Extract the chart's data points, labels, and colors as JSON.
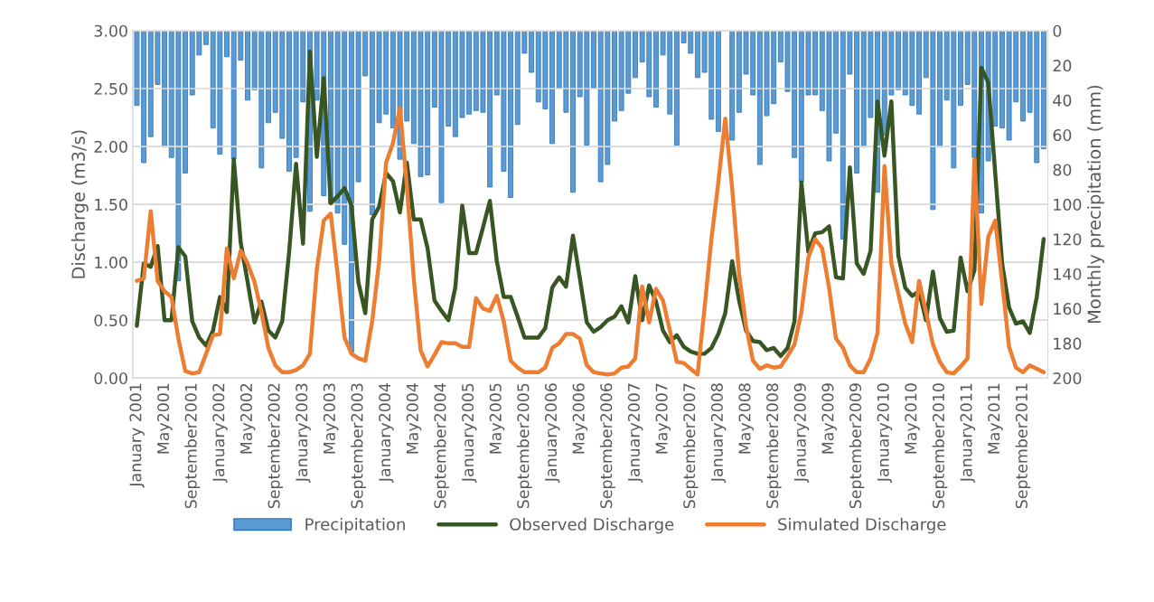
{
  "chart_data": {
    "type": "bar",
    "ylabel": "Discharge (m3/s)",
    "y2label": "Monthly precipitation (mm)",
    "categories": [
      "January 2001",
      null,
      null,
      null,
      "May2001",
      null,
      null,
      null,
      "September2001",
      null,
      null,
      null,
      "January2002",
      null,
      null,
      null,
      "May2002",
      null,
      null,
      null,
      "September2002",
      null,
      null,
      null,
      "January2003",
      null,
      null,
      null,
      "May2003",
      null,
      null,
      null,
      "September2003",
      null,
      null,
      null,
      "January2004",
      null,
      null,
      null,
      "May2004",
      null,
      null,
      null,
      "September2004",
      null,
      null,
      null,
      "January2005",
      null,
      null,
      null,
      "May2005",
      null,
      null,
      null,
      "September2005",
      null,
      null,
      null,
      "January2006",
      null,
      null,
      null,
      "May2006",
      null,
      null,
      null,
      "September2006",
      null,
      null,
      null,
      "January2007",
      null,
      null,
      null,
      "May2007",
      null,
      null,
      null,
      "September2007",
      null,
      null,
      null,
      "January2008",
      null,
      null,
      null,
      "May2008",
      null,
      null,
      null,
      "September2008",
      null,
      null,
      null,
      "January2009",
      null,
      null,
      null,
      "May2009",
      null,
      null,
      null,
      "September2009",
      null,
      null,
      null,
      "January2010",
      null,
      null,
      null,
      "May2010",
      null,
      null,
      null,
      "September2010",
      null,
      null,
      null,
      "January2011",
      null,
      null,
      null,
      "May2011",
      null,
      null,
      null,
      "September2011",
      null,
      null,
      null
    ],
    "series": [
      {
        "name": "Precipitation",
        "axis": "y2",
        "color": "#5b9bd5",
        "values": [
          43,
          76,
          61,
          31,
          67,
          73,
          144,
          82,
          37,
          14,
          8,
          56,
          71,
          15,
          74,
          17,
          40,
          34,
          79,
          53,
          47,
          62,
          81,
          73,
          41,
          104,
          40,
          95,
          100,
          105,
          123,
          185,
          87,
          26,
          106,
          53,
          48,
          56,
          74,
          52,
          65,
          84,
          83,
          44,
          99,
          55,
          61,
          50,
          48,
          46,
          47,
          90,
          37,
          81,
          96,
          54,
          13,
          24,
          41,
          45,
          65,
          33,
          47,
          93,
          38,
          66,
          33,
          87,
          77,
          52,
          46,
          36,
          27,
          18,
          38,
          44,
          14,
          48,
          66,
          7,
          13,
          27,
          24,
          51,
          58,
          null,
          63,
          47,
          25,
          37,
          77,
          49,
          42,
          18,
          35,
          73,
          87,
          37,
          37,
          46,
          75,
          59,
          120,
          25,
          82,
          67,
          50,
          93,
          60,
          37,
          34,
          37,
          43,
          48,
          27,
          103,
          67,
          40,
          79,
          43,
          31,
          73,
          105,
          75,
          55,
          56,
          63,
          41,
          52,
          47,
          76,
          68
        ]
      },
      {
        "name": "Observed Discharge",
        "type": "line",
        "color": "#375623",
        "values": [
          0.45,
          0.99,
          0.96,
          1.14,
          0.5,
          0.5,
          1.13,
          1.05,
          0.49,
          0.35,
          0.28,
          0.41,
          0.7,
          0.57,
          1.89,
          1.17,
          0.83,
          0.48,
          0.66,
          0.41,
          0.35,
          0.49,
          1.09,
          1.85,
          1.16,
          2.82,
          1.91,
          2.59,
          1.51,
          1.57,
          1.64,
          1.49,
          0.83,
          0.56,
          1.37,
          1.48,
          1.77,
          1.7,
          1.43,
          1.86,
          1.37,
          1.37,
          1.12,
          0.67,
          0.58,
          0.5,
          0.78,
          1.49,
          1.08,
          1.08,
          1.3,
          1.53,
          1.01,
          0.7,
          0.7,
          0.53,
          0.35,
          0.35,
          0.35,
          0.43,
          0.78,
          0.87,
          0.79,
          1.23,
          0.86,
          0.48,
          0.4,
          0.44,
          0.5,
          0.53,
          0.62,
          0.48,
          0.88,
          0.5,
          0.8,
          0.66,
          0.41,
          0.31,
          0.37,
          0.27,
          0.23,
          0.21,
          0.21,
          0.26,
          0.38,
          0.56,
          1.01,
          0.67,
          0.41,
          0.32,
          0.31,
          0.24,
          0.26,
          0.19,
          0.26,
          0.49,
          1.69,
          1.09,
          1.25,
          1.26,
          1.31,
          0.87,
          0.86,
          1.82,
          0.99,
          0.9,
          1.1,
          2.39,
          1.92,
          2.39,
          1.06,
          0.78,
          0.71,
          0.75,
          0.5,
          0.92,
          0.52,
          0.4,
          0.41,
          1.04,
          0.75,
          0.93,
          2.68,
          2.55,
          1.77,
          0.99,
          0.61,
          0.47,
          0.49,
          0.39,
          0.7,
          1.2
        ]
      },
      {
        "name": "Simulated Discharge",
        "type": "line",
        "color": "#ed7d31",
        "values": [
          0.84,
          0.86,
          1.44,
          0.84,
          0.75,
          0.7,
          0.34,
          0.06,
          0.04,
          0.05,
          0.21,
          0.37,
          0.38,
          1.12,
          0.86,
          1.1,
          0.99,
          0.83,
          0.57,
          0.26,
          0.11,
          0.05,
          0.05,
          0.07,
          0.11,
          0.21,
          0.94,
          1.36,
          1.42,
          0.9,
          0.35,
          0.21,
          0.17,
          0.15,
          0.49,
          1.01,
          1.86,
          2.03,
          2.33,
          1.66,
          0.86,
          0.24,
          0.1,
          0.2,
          0.31,
          0.3,
          0.3,
          0.27,
          0.27,
          0.69,
          0.6,
          0.58,
          0.71,
          0.49,
          0.15,
          0.09,
          0.05,
          0.05,
          0.05,
          0.09,
          0.26,
          0.3,
          0.38,
          0.38,
          0.34,
          0.11,
          0.05,
          0.04,
          0.03,
          0.04,
          0.09,
          0.1,
          0.17,
          0.79,
          0.48,
          0.77,
          0.67,
          0.41,
          0.14,
          0.13,
          0.08,
          0.03,
          0.6,
          1.2,
          1.69,
          2.24,
          1.64,
          0.9,
          0.45,
          0.15,
          0.08,
          0.11,
          0.09,
          0.1,
          0.19,
          0.29,
          0.57,
          1.04,
          1.2,
          1.12,
          0.78,
          0.34,
          0.26,
          0.11,
          0.05,
          0.05,
          0.17,
          0.39,
          1.83,
          0.99,
          0.73,
          0.47,
          0.31,
          0.84,
          0.57,
          0.29,
          0.14,
          0.05,
          0.04,
          0.1,
          0.17,
          1.89,
          0.64,
          1.22,
          1.36,
          0.83,
          0.27,
          0.09,
          0.05,
          0.11,
          0.08,
          0.05
        ]
      }
    ],
    "ylim": [
      0,
      3
    ],
    "yticks": [
      {
        "value": 0,
        "label": "0.00"
      },
      {
        "value": 0.5,
        "label": "0.50"
      },
      {
        "value": 1,
        "label": "1.00"
      },
      {
        "value": 1.5,
        "label": "1.50"
      },
      {
        "value": 2,
        "label": "2.00"
      },
      {
        "value": 2.5,
        "label": "2.50"
      },
      {
        "value": 3,
        "label": "3.00"
      }
    ],
    "y2lim": [
      200,
      0
    ],
    "y2ticks": [
      0,
      20,
      40,
      60,
      80,
      100,
      120,
      140,
      160,
      180,
      200
    ],
    "grid": "y",
    "legend": "bottom"
  }
}
